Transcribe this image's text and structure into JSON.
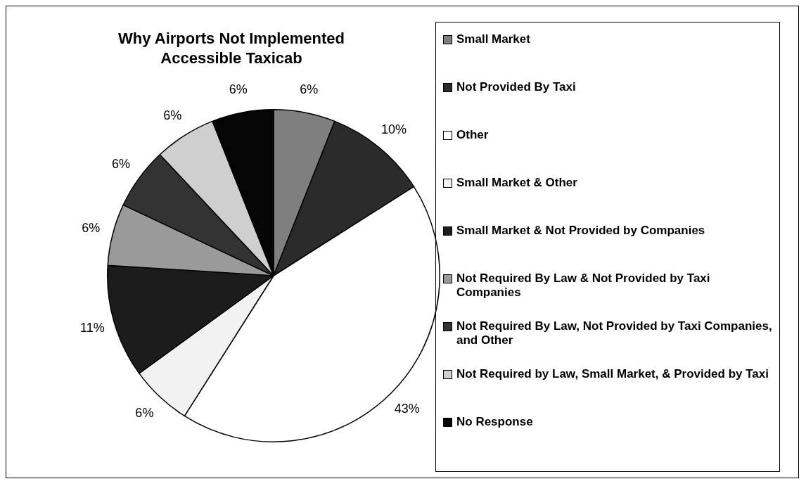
{
  "chart_data": {
    "type": "pie",
    "title": "Why Airports Not Implemented Accessible Taxicab",
    "categories": [
      "Small Market",
      "Not Provided By Taxi",
      "Other",
      "Small Market & Other",
      "Small Market & Not Provided by Companies",
      "Not Required By Law & Not Provided by Taxi Companies",
      "Not Required By Law, Not Provided by Taxi Companies, and Other",
      "Not Required by Law, Small Market, & Provided by Taxi",
      "No Response"
    ],
    "values": [
      6,
      10,
      43,
      6,
      11,
      6,
      6,
      6,
      6
    ],
    "value_labels": [
      "6%",
      "10%",
      "43%",
      "6%",
      "11%",
      "6%",
      "6%",
      "6%",
      "6%"
    ],
    "colors": [
      "#7f7f7f",
      "#2b2b2b",
      "#ffffff",
      "#f2f2f2",
      "#1c1c1c",
      "#9a9a9a",
      "#333333",
      "#cfcfcf",
      "#050505"
    ],
    "legend": "right"
  }
}
